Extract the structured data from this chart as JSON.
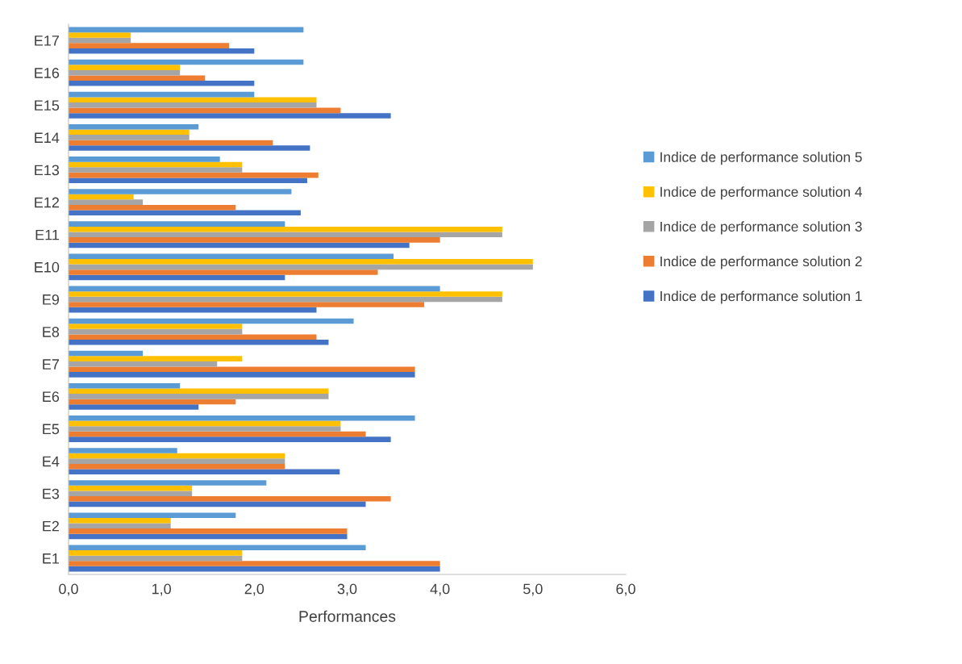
{
  "chart_data": {
    "type": "bar",
    "orientation": "horizontal",
    "xlabel": "Performances",
    "categories": [
      "E17",
      "E16",
      "E15",
      "E14",
      "E13",
      "E12",
      "E11",
      "E10",
      "E9",
      "E8",
      "E7",
      "E6",
      "E5",
      "E4",
      "E3",
      "E2",
      "E1"
    ],
    "series": [
      {
        "name": "Indice de performance solution 1",
        "color": "#4472c4",
        "values": [
          2.0,
          2.0,
          3.47,
          2.6,
          2.57,
          2.5,
          3.67,
          2.33,
          2.67,
          2.8,
          3.73,
          1.4,
          3.47,
          2.92,
          3.2,
          3.0,
          4.0
        ]
      },
      {
        "name": "Indice de performance solution 2",
        "color": "#ed7d31",
        "values": [
          1.73,
          1.47,
          2.93,
          2.2,
          2.69,
          1.8,
          4.0,
          3.33,
          3.83,
          2.67,
          3.73,
          1.8,
          3.2,
          2.33,
          3.47,
          3.0,
          4.0
        ]
      },
      {
        "name": "Indice de performance solution 3",
        "color": "#a5a5a5",
        "values": [
          0.67,
          1.2,
          2.67,
          1.3,
          1.87,
          0.8,
          4.67,
          5.0,
          4.67,
          1.87,
          1.6,
          2.8,
          2.93,
          2.33,
          1.33,
          1.1,
          1.87
        ]
      },
      {
        "name": "Indice de performance solution 4",
        "color": "#ffc000",
        "values": [
          0.67,
          1.2,
          2.67,
          1.3,
          1.87,
          0.7,
          4.67,
          5.0,
          4.67,
          1.87,
          1.87,
          2.8,
          2.93,
          2.33,
          1.33,
          1.1,
          1.87
        ]
      },
      {
        "name": "Indice de performance solution 5",
        "color": "#5b9bd5",
        "values": [
          2.53,
          2.53,
          2.0,
          1.4,
          1.63,
          2.4,
          2.33,
          3.5,
          4.0,
          3.07,
          0.8,
          1.2,
          3.73,
          1.17,
          2.13,
          1.8,
          3.2
        ]
      }
    ],
    "xlim": [
      0,
      6
    ],
    "xticks": [
      {
        "value": 0,
        "label": "0,0"
      },
      {
        "value": 1,
        "label": "1,0"
      },
      {
        "value": 2,
        "label": "2,0"
      },
      {
        "value": 3,
        "label": "3,0"
      },
      {
        "value": 4,
        "label": "4,0"
      },
      {
        "value": 5,
        "label": "5,0"
      },
      {
        "value": 6,
        "label": "6,0"
      }
    ],
    "grid": false,
    "legend": "right"
  }
}
